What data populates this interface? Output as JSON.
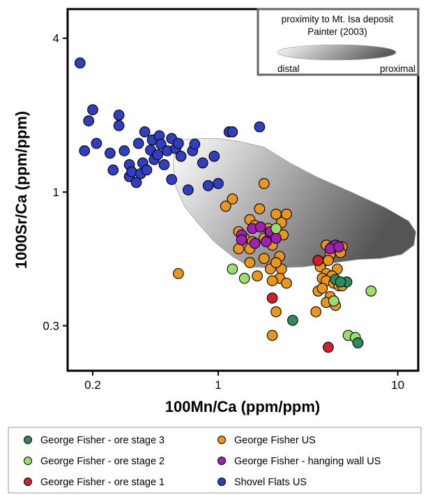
{
  "chart_data": {
    "type": "scatter",
    "xlabel": "100Mn/Ca (ppm/ppm)",
    "ylabel": "1000Sr/Ca (ppm/ppm)",
    "x_scale": "log",
    "y_scale": "log",
    "xlim": [
      0.145,
      13
    ],
    "ylim": [
      0.2,
      5.2
    ],
    "x_ticks": [
      0.2,
      1,
      10
    ],
    "x_tick_labels": [
      "0.2",
      "1",
      "10"
    ],
    "y_ticks": [
      0.3,
      1,
      4
    ],
    "y_tick_labels": [
      "0.3",
      "1",
      "4"
    ],
    "grid": false,
    "legend_position": "bottom",
    "inset": {
      "line1": "proximity to Mt. Isa deposit",
      "line2": "Painter (2003)",
      "left_label": "distal",
      "right_label": "proximal"
    },
    "field": {
      "description_color_gradient": [
        "#ffffff",
        "#555555"
      ],
      "outline": [
        [
          0.6,
          1.6
        ],
        [
          0.78,
          1.62
        ],
        [
          1.0,
          1.62
        ],
        [
          1.3,
          1.58
        ],
        [
          1.8,
          1.5
        ],
        [
          2.5,
          1.3
        ],
        [
          3.5,
          1.15
        ],
        [
          5.5,
          1.0
        ],
        [
          8.5,
          0.87
        ],
        [
          11.5,
          0.77
        ],
        [
          12.6,
          0.7
        ],
        [
          12.3,
          0.62
        ],
        [
          10.5,
          0.57
        ],
        [
          8,
          0.55
        ],
        [
          6,
          0.545
        ],
        [
          4.5,
          0.53
        ],
        [
          3,
          0.51
        ],
        [
          2,
          0.505
        ],
        [
          1.5,
          0.51
        ],
        [
          1.2,
          0.56
        ],
        [
          0.95,
          0.64
        ],
        [
          0.78,
          0.75
        ],
        [
          0.65,
          0.88
        ],
        [
          0.58,
          1.05
        ],
        [
          0.56,
          1.3
        ],
        [
          0.58,
          1.5
        ]
      ]
    },
    "series": [
      {
        "name": "George Fisher - ore stage 3",
        "color": "#2e8b57",
        "x": [
          4.5,
          5.2,
          4.8,
          2.6,
          6.0
        ],
        "y": [
          0.455,
          0.445,
          0.445,
          0.315,
          0.257
        ]
      },
      {
        "name": "George Fisher - ore stage 2",
        "color": "#98e06a",
        "x": [
          1.2,
          1.4,
          2.1,
          4.4,
          7.1,
          5.3,
          5.8
        ],
        "y": [
          0.5,
          0.46,
          0.72,
          0.375,
          0.41,
          0.275,
          0.27
        ]
      },
      {
        "name": "George Fisher - ore stage 1",
        "color": "#d0202a",
        "x": [
          3.6,
          2.0,
          4.1
        ],
        "y": [
          0.54,
          0.385,
          0.247
        ]
      },
      {
        "name": "George Fisher US",
        "color": "#e8961e",
        "x": [
          1.8,
          1.2,
          1.1,
          1.7,
          2.1,
          2.4,
          1.5,
          1.6,
          1.3,
          1.4,
          1.55,
          1.8,
          1.95,
          1.9,
          2.25,
          2.3,
          1.3,
          1.5,
          2.0,
          1.5,
          1.8,
          2.2,
          1.95,
          2.25,
          2.2,
          2.0,
          1.65,
          2.1,
          2.4,
          4.0,
          4.3,
          4.9,
          4.8,
          4.2,
          3.8,
          4.1,
          3.7,
          4.6,
          4.0,
          4.3,
          3.8,
          4.0,
          4.4,
          4.7,
          4.9,
          3.6,
          3.8,
          4.2,
          4.0,
          4.5,
          2.1,
          3.5,
          0.6,
          2.0
        ],
        "y": [
          1.08,
          0.94,
          0.88,
          0.86,
          0.82,
          0.82,
          0.78,
          0.74,
          0.7,
          0.66,
          0.64,
          0.66,
          0.68,
          0.72,
          0.76,
          0.68,
          0.6,
          0.6,
          0.62,
          0.53,
          0.55,
          0.56,
          0.5,
          0.5,
          0.46,
          0.45,
          0.47,
          0.53,
          0.44,
          0.62,
          0.61,
          0.61,
          0.58,
          0.57,
          0.53,
          0.54,
          0.51,
          0.5,
          0.48,
          0.47,
          0.46,
          0.45,
          0.44,
          0.43,
          0.43,
          0.41,
          0.42,
          0.39,
          0.37,
          0.36,
          0.34,
          0.34,
          0.48,
          0.275
        ]
      },
      {
        "name": "George Fisher - hanging wall US",
        "color": "#a020b4",
        "x": [
          1.35,
          1.55,
          1.72,
          1.95,
          1.6,
          1.35,
          1.85,
          2.1,
          4.5,
          4.2,
          4.7
        ],
        "y": [
          0.68,
          0.72,
          0.73,
          0.7,
          0.63,
          0.65,
          0.64,
          0.66,
          0.62,
          0.6,
          0.61
        ]
      },
      {
        "name": "Shovel Flats US",
        "color": "#2f3fc0",
        "x": [
          0.17,
          0.18,
          0.19,
          0.2,
          0.21,
          0.25,
          0.26,
          0.28,
          0.28,
          0.3,
          0.32,
          0.32,
          0.33,
          0.35,
          0.36,
          0.37,
          0.38,
          0.39,
          0.4,
          0.42,
          0.43,
          0.44,
          0.46,
          0.47,
          0.48,
          0.5,
          0.52,
          0.55,
          0.55,
          0.58,
          0.6,
          0.62,
          0.68,
          0.72,
          0.74,
          0.82,
          0.88,
          0.95,
          1.0,
          1.15,
          1.2,
          1.7
        ],
        "y": [
          3.2,
          1.45,
          1.9,
          2.1,
          1.55,
          1.42,
          1.22,
          1.82,
          2.0,
          1.45,
          1.28,
          1.15,
          1.2,
          1.09,
          1.55,
          1.18,
          1.3,
          1.72,
          1.22,
          1.46,
          1.6,
          1.34,
          1.4,
          1.66,
          1.54,
          1.28,
          1.45,
          1.62,
          1.12,
          1.48,
          1.55,
          1.38,
          1.02,
          1.45,
          1.54,
          1.3,
          1.06,
          1.38,
          1.08,
          1.72,
          1.72,
          1.8
        ]
      }
    ],
    "legend_order": [
      0,
      3,
      1,
      4,
      2,
      5
    ]
  }
}
